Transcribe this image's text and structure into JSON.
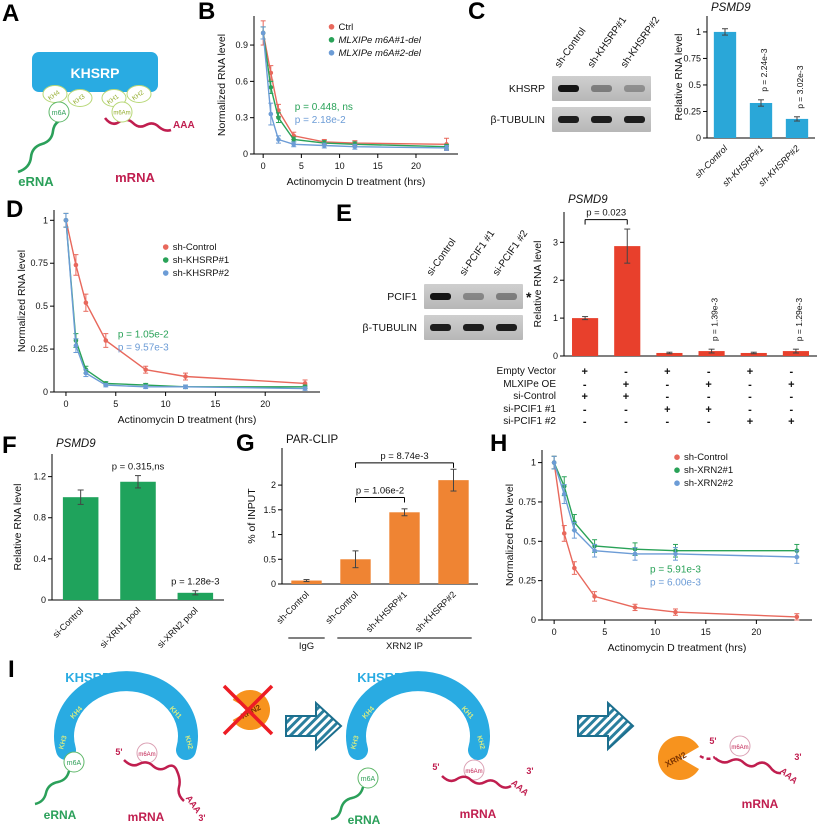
{
  "colors": {
    "red_line": "#e8685c",
    "green_line": "#29a258",
    "blue_line": "#6c9cd6",
    "blue_bar": "#2aa7d8",
    "red_bar": "#e8402c",
    "green_bar": "#1fa35c",
    "orange_bar": "#ef8433",
    "khsrp_blue": "#29abe2",
    "mrna_red": "#c01e4f",
    "erna_green": "#2ba05a",
    "xrn2_orange": "#f7931e"
  },
  "panelA": {
    "letter": "A",
    "protein": "KHSRP",
    "domains": [
      "KH4",
      "KH3",
      "KH1",
      "KH2"
    ],
    "m6a": "m6A",
    "m6am": "m6Am",
    "erna": "eRNA",
    "mrna": "mRNA",
    "aaa": "AAA"
  },
  "panelB": {
    "letter": "B"
  },
  "panelC": {
    "letter": "C",
    "blot": {
      "lanes": [
        "sh-Control",
        "sh-KHSRP#1",
        "sh-KHSRP#2"
      ],
      "rows": [
        {
          "label": "KHSRP",
          "bands": [
            1,
            0.4,
            0.3
          ]
        },
        {
          "label": "β-TUBULIN",
          "bands": [
            0.95,
            0.95,
            0.95
          ]
        }
      ]
    }
  },
  "panelD": {
    "letter": "D"
  },
  "panelE": {
    "letter": "E",
    "blot": {
      "lanes": [
        "si-Control",
        "si-PCIF1 #1",
        "si-PCIF1 #2"
      ],
      "rows": [
        {
          "label": "PCIF1",
          "bands": [
            1,
            0.35,
            0.4
          ],
          "asterisk": "*"
        },
        {
          "label": "β-TUBULIN",
          "bands": [
            0.95,
            0.95,
            0.95
          ]
        }
      ]
    },
    "matrix": {
      "rows": [
        {
          "label": "Empty Vector",
          "values": [
            "+",
            "-",
            "+",
            "-",
            "+",
            "-"
          ]
        },
        {
          "label": "MLXIPe OE",
          "values": [
            "-",
            "+",
            "-",
            "+",
            "-",
            "+"
          ]
        },
        {
          "label": "si-Control",
          "values": [
            "+",
            "+",
            "-",
            "-",
            "-",
            "-"
          ]
        },
        {
          "label": "si-PCIF1 #1",
          "values": [
            "-",
            "-",
            "+",
            "+",
            "-",
            "-"
          ]
        },
        {
          "label": "si-PCIF1 #2",
          "values": [
            "-",
            "-",
            "-",
            "-",
            "+",
            "+"
          ]
        }
      ]
    }
  },
  "panelF": {
    "letter": "F"
  },
  "panelG": {
    "letter": "G"
  },
  "panelH": {
    "letter": "H"
  },
  "panelI": {
    "letter": "I",
    "stage1": {
      "khsrp": "KHSRP",
      "xrn2": "XRN2",
      "kh": [
        "KH4",
        "KH3",
        "KH1",
        "KH2"
      ],
      "m6a": "m6A",
      "m6am": "m6Am",
      "erna": "eRNA",
      "mrna": "mRNA",
      "five_prime": "5'",
      "three_prime": "3'",
      "aaa": "AAA"
    },
    "stage2": {
      "khsrp": "KHSRP",
      "kh": [
        "KH4",
        "KH3",
        "KH1",
        "KH2"
      ],
      "m6a": "m6A",
      "m6am": "m6Am",
      "erna": "eRNA",
      "mrna": "mRNA",
      "five_prime": "5'",
      "three_prime": "3'",
      "aaa": "AAA"
    },
    "stage3": {
      "xrn2": "XRN2",
      "m6am": "m6Am",
      "mrna": "mRNA",
      "five_prime": "5'",
      "three_prime": "3'",
      "aaa": "AAA"
    }
  },
  "chart_data": [
    {
      "id": "B",
      "type": "line",
      "xlabel": "Actinomycin D treatment (hrs)",
      "ylabel": "Normalized RNA level",
      "x": [
        0,
        1,
        2,
        4,
        8,
        12,
        24
      ],
      "xticks": [
        0,
        5,
        10,
        15,
        20
      ],
      "yticks": [
        0,
        0.3,
        0.6,
        0.9
      ],
      "xlim": [
        -1.2,
        25.5
      ],
      "ylim": [
        0,
        1.14
      ],
      "series": [
        {
          "name": "Ctrl",
          "colorKey": "red_line",
          "values": [
            1,
            0.67,
            0.36,
            0.15,
            0.1,
            0.09,
            0.08
          ],
          "errors": [
            0.1,
            0.06,
            0.05,
            0.03,
            0.02,
            0.02,
            0.05
          ]
        },
        {
          "name": "MLXIPe m6A#1-del",
          "colorKey": "green_line",
          "italic": true,
          "values": [
            1,
            0.55,
            0.3,
            0.12,
            0.09,
            0.08,
            0.06
          ],
          "errors": [
            0.05,
            0.05,
            0.04,
            0.02,
            0.02,
            0.02,
            0.02
          ]
        },
        {
          "name": "MLXIPe m6A#2-del",
          "colorKey": "blue_line",
          "italic": true,
          "values": [
            1,
            0.33,
            0.12,
            0.08,
            0.07,
            0.06,
            0.05
          ],
          "errors": [
            0.05,
            0.09,
            0.03,
            0.02,
            0.02,
            0.02,
            0.02
          ]
        }
      ],
      "legend_pos": [
        0.38,
        0.1
      ],
      "pvalues": [
        {
          "text": "p = 0.448, ns",
          "colorKey": "green_line"
        },
        {
          "text": "p = 2.18e-2",
          "colorKey": "blue_line"
        }
      ],
      "pvalues_pos": [
        0.2,
        0.68
      ]
    },
    {
      "id": "C",
      "type": "bar",
      "title": "PSMD9",
      "title_italic": true,
      "ylabel": "Relative RNA level",
      "categories": [
        "sh-Control",
        "sh-KHSRP#1",
        "sh-KHSRP#2"
      ],
      "cat_italic": true,
      "values": [
        1,
        0.33,
        0.18
      ],
      "errors": [
        0.03,
        0.03,
        0.02
      ],
      "colorKey": "blue_bar",
      "yticks": [
        0,
        0.25,
        0.5,
        0.75,
        1
      ],
      "ylim": [
        0,
        1.15
      ],
      "pvalues": [
        {
          "text": "p = 2.24e-3",
          "bar": 1,
          "rotated": true
        },
        {
          "text": "p = 3.02e-3",
          "bar": 2,
          "rotated": true
        }
      ],
      "ml": 36,
      "mt": 16,
      "mb": 52
    },
    {
      "id": "D",
      "type": "line",
      "xlabel": "Actinomycin D treatment (hrs)",
      "ylabel": "Normalized RNA level",
      "x": [
        0,
        1,
        2,
        4,
        8,
        12,
        24
      ],
      "xticks": [
        0,
        5,
        10,
        15,
        20
      ],
      "yticks": [
        0,
        0.25,
        0.5,
        0.75,
        1
      ],
      "xlim": [
        -1.2,
        25.5
      ],
      "ylim": [
        0,
        1.06
      ],
      "series": [
        {
          "name": "sh-Control",
          "colorKey": "red_line",
          "values": [
            1,
            0.74,
            0.52,
            0.3,
            0.13,
            0.09,
            0.05
          ],
          "errors": [
            0.04,
            0.06,
            0.05,
            0.04,
            0.02,
            0.02,
            0.02
          ]
        },
        {
          "name": "sh-KHSRP#1",
          "colorKey": "green_line",
          "values": [
            1,
            0.3,
            0.13,
            0.05,
            0.04,
            0.03,
            0.03
          ],
          "errors": [
            0.04,
            0.04,
            0.02,
            0.01,
            0.01,
            0.01,
            0.01
          ]
        },
        {
          "name": "sh-KHSRP#2",
          "colorKey": "blue_line",
          "values": [
            1,
            0.27,
            0.11,
            0.04,
            0.03,
            0.03,
            0.02
          ],
          "errors": [
            0.04,
            0.04,
            0.02,
            0.01,
            0.01,
            0.01,
            0.01
          ]
        }
      ],
      "legend_pos": [
        0.42,
        0.22
      ],
      "pvalues": [
        {
          "text": "p = 1.05e-2",
          "colorKey": "green_line"
        },
        {
          "text": "p = 9.57e-3",
          "colorKey": "blue_line"
        }
      ],
      "pvalues_pos": [
        0.24,
        0.7
      ]
    },
    {
      "id": "E",
      "type": "bar",
      "title": "PSMD9",
      "title_italic": true,
      "ylabel": "Relative RNA level",
      "categories": [
        "",
        "",
        "",
        "",
        "",
        ""
      ],
      "values": [
        1,
        2.9,
        0.08,
        0.13,
        0.08,
        0.13
      ],
      "errors": [
        0.04,
        0.45,
        0.02,
        0.05,
        0.02,
        0.05
      ],
      "colorKey": "red_bar",
      "yticks": [
        0,
        1,
        2,
        3
      ],
      "ylim": [
        0,
        3.8
      ],
      "brackets": [
        {
          "text": "p = 0.023",
          "from": 0,
          "to": 1,
          "y": 3.6
        }
      ],
      "pvalues": [
        {
          "text": "p = 1.39e-3",
          "bar": 3,
          "rotated": true
        },
        {
          "text": "p = 1.29e-3",
          "bar": 5,
          "rotated": true
        }
      ],
      "ml": 34,
      "mt": 20,
      "mb": 8
    },
    {
      "id": "F",
      "type": "bar",
      "title": "PSMD9",
      "title_italic": true,
      "ylabel": "Relative RNA level",
      "categories": [
        "si-Control",
        "si-XRN1 pool",
        "si-XRN2 pool"
      ],
      "values": [
        1,
        1.15,
        0.07
      ],
      "errors": [
        0.07,
        0.06,
        0.02
      ],
      "colorKey": "green_bar",
      "yticks": [
        0,
        0.4,
        0.8,
        1.2
      ],
      "ylim": [
        0,
        1.42
      ],
      "pvalues": [
        {
          "text": "p = 0.315,ns",
          "bar": 1
        },
        {
          "text": "p = 1.28e-3",
          "bar": 2
        }
      ],
      "ml": 42,
      "mt": 18,
      "mb": 54
    },
    {
      "id": "G",
      "type": "bar",
      "title": "PAR-CLIP",
      "ylabel": "% of INPUT",
      "categories": [
        "sh-Control",
        "sh-Control",
        "sh-KHSRP#1",
        "sh-KHSRP#2"
      ],
      "values": [
        0.07,
        0.5,
        1.45,
        2.1
      ],
      "errors": [
        0.02,
        0.17,
        0.07,
        0.22
      ],
      "colorKey": "orange_bar",
      "yticks": [
        0,
        0.5,
        1,
        1.5,
        2
      ],
      "ylim": [
        0,
        2.75
      ],
      "brackets": [
        {
          "text": "p = 1.06e-2",
          "from": 1,
          "to": 2,
          "y": 1.75
        },
        {
          "text": "p = 8.74e-3",
          "from": 1,
          "to": 3,
          "y": 2.45
        }
      ],
      "groups": [
        {
          "label": "IgG",
          "from": 0,
          "to": 0
        },
        {
          "label": "XRN2 IP",
          "from": 1,
          "to": 3
        }
      ],
      "ml": 38,
      "mt": 16,
      "mb": 70
    },
    {
      "id": "H",
      "type": "line",
      "xlabel": "Actinomycin D treatment (hrs)",
      "ylabel": "Normalized RNA level",
      "x": [
        0,
        1,
        2,
        4,
        8,
        12,
        24
      ],
      "xticks": [
        0,
        5,
        10,
        15,
        20
      ],
      "yticks": [
        0,
        0.25,
        0.5,
        0.75,
        1
      ],
      "xlim": [
        -1.2,
        25.5
      ],
      "ylim": [
        0,
        1.08
      ],
      "series": [
        {
          "name": "sh-Control",
          "colorKey": "red_line",
          "values": [
            1,
            0.55,
            0.33,
            0.15,
            0.08,
            0.05,
            0.02
          ],
          "errors": [
            0.04,
            0.05,
            0.04,
            0.03,
            0.02,
            0.02,
            0.02
          ]
        },
        {
          "name": "sh-XRN2#1",
          "colorKey": "green_line",
          "values": [
            1,
            0.85,
            0.62,
            0.47,
            0.45,
            0.44,
            0.44
          ],
          "errors": [
            0.04,
            0.06,
            0.05,
            0.04,
            0.04,
            0.04,
            0.04
          ]
        },
        {
          "name": "sh-XRN2#2",
          "colorKey": "blue_line",
          "values": [
            1,
            0.8,
            0.57,
            0.44,
            0.42,
            0.42,
            0.4
          ],
          "errors": [
            0.04,
            0.06,
            0.05,
            0.04,
            0.04,
            0.04,
            0.04
          ]
        }
      ],
      "legend_pos": [
        0.5,
        0.06
      ],
      "pvalues": [
        {
          "text": "p = 5.91e-3",
          "colorKey": "green_line"
        },
        {
          "text": "p = 6.00e-3",
          "colorKey": "blue_line"
        }
      ],
      "pvalues_pos": [
        0.4,
        0.72
      ]
    }
  ]
}
